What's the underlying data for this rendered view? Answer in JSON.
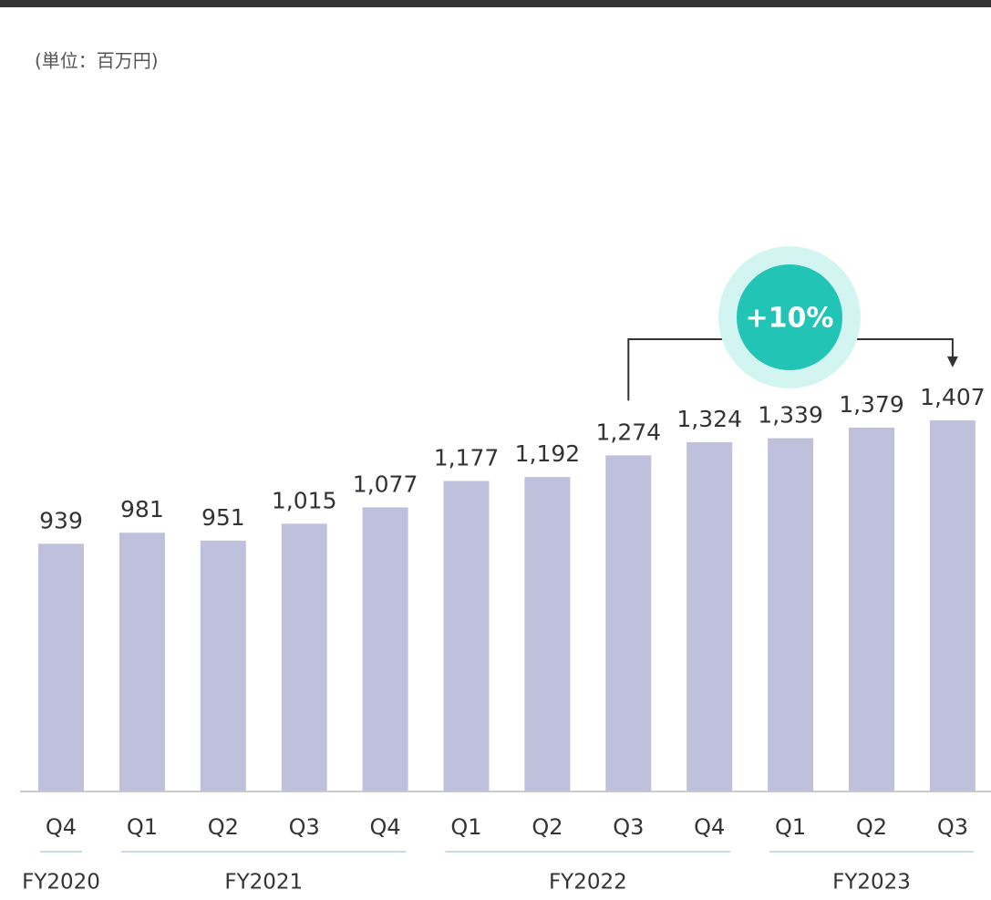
{
  "chart_data": {
    "type": "bar",
    "unit_label": "(単位：百万円)",
    "categories": [
      "Q4",
      "Q1",
      "Q2",
      "Q3",
      "Q4",
      "Q1",
      "Q2",
      "Q3",
      "Q4",
      "Q1",
      "Q2",
      "Q3"
    ],
    "values": [
      939,
      981,
      951,
      1015,
      1077,
      1177,
      1192,
      1274,
      1324,
      1339,
      1379,
      1407
    ],
    "value_labels": [
      "939",
      "981",
      "951",
      "1,015",
      "1,077",
      "1,177",
      "1,192",
      "1,274",
      "1,324",
      "1,339",
      "1,379",
      "1,407"
    ],
    "color": "#bfc0dc",
    "ylim": [
      0,
      3000
    ],
    "groups": [
      {
        "name": "FY2020",
        "count": 1
      },
      {
        "name": "FY2021",
        "count": 4
      },
      {
        "name": "FY2022",
        "count": 4
      },
      {
        "name": "FY2023",
        "count": 3
      }
    ],
    "annotation": {
      "text": "+10%",
      "from": 7,
      "to": 11
    }
  }
}
